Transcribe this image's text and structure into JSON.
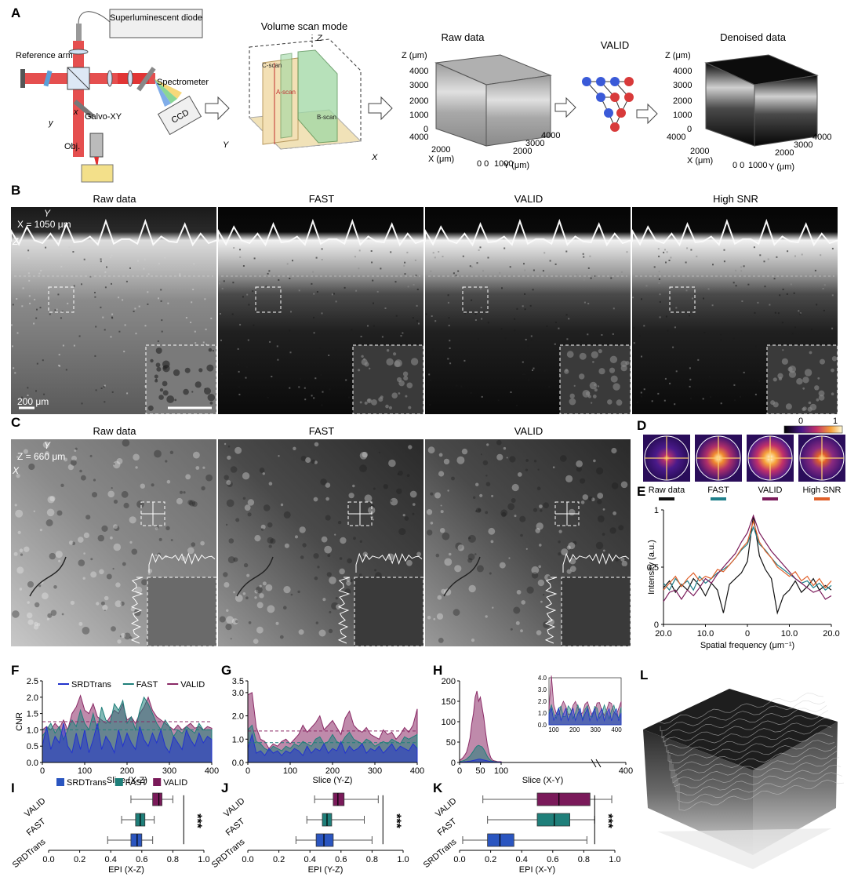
{
  "panel_letters": [
    "A",
    "B",
    "C",
    "D",
    "E",
    "F",
    "G",
    "H",
    "I",
    "J",
    "K",
    "L"
  ],
  "panel_a": {
    "device_labels": {
      "light_source": "Superluminescent diode",
      "reference_arm": "Reference arm",
      "spectrometer": "Spectrometer",
      "ccd": "CCD",
      "galvo": "Galvo-XY",
      "objective": "Obj."
    },
    "scan_title": "Volume scan mode",
    "scan_labels": {
      "a_scan": "A-scan",
      "b_scan": "B-scan",
      "c_scan": "C-scan"
    },
    "raw_title": "Raw data",
    "denoised_title": "Denoised data",
    "valid_label": "VALID",
    "cube_axes": {
      "z_label": "Z (μm)",
      "x_label": "X (μm)",
      "y_label": "Y (μm)",
      "z_ticks": [
        "4000",
        "3000",
        "2000",
        "1000",
        "0"
      ],
      "x_ticks": [
        "4000",
        "2000",
        "0"
      ],
      "y_ticks": [
        "0",
        "1000",
        "2000",
        "3000",
        "4000"
      ]
    }
  },
  "panel_b": {
    "titles": [
      "Raw data",
      "FAST",
      "VALID",
      "High SNR"
    ],
    "position_label": "X = 1050 μm",
    "scale_bar": "200 μm"
  },
  "panel_c": {
    "titles": [
      "Raw data",
      "FAST",
      "VALID"
    ],
    "position_label": "Z = 660 μm"
  },
  "panel_d": {
    "labels": [
      "Raw data",
      "FAST",
      "VALID",
      "High SNR"
    ],
    "colorbar_min": "0",
    "colorbar_max": "1",
    "legend_colors": [
      "#111111",
      "#1f7f8a",
      "#7a1a5a",
      "#e0602a"
    ]
  },
  "panel_e": {
    "ylabel": "Intensity (a.u.)",
    "xlabel": "Spatial frequency (μm⁻¹)",
    "xticks": [
      "20.0",
      "10.0",
      "0",
      "10.0",
      "20.0"
    ],
    "yticks": [
      "0",
      "0.5",
      "1"
    ]
  },
  "chart_data": [
    {
      "panel": "F",
      "type": "area",
      "xlabel": "Slice (X-Z)",
      "ylabel": "CNR",
      "xlim": [
        0,
        400
      ],
      "ylim": [
        0,
        2.5
      ],
      "xticks": [
        "0",
        "100",
        "200",
        "300",
        "400"
      ],
      "yticks": [
        "0.0",
        "0.5",
        "1.0",
        "1.5",
        "2.0",
        "2.5"
      ],
      "legend": [
        "SRDTrans",
        "FAST",
        "VALID"
      ],
      "series": [
        {
          "name": "VALID",
          "color": "#8a2a66",
          "values": [
            1.0,
            1.1,
            1.0,
            1.2,
            1.05,
            1.3,
            1.0,
            1.5,
            1.7,
            2.05,
            1.6,
            1.5,
            1.8,
            1.4,
            1.3,
            1.2,
            1.4,
            1.6,
            1.5,
            1.8,
            1.3,
            1.4,
            1.2,
            1.5,
            1.7,
            2.0,
            1.6,
            1.4,
            1.3,
            1.2,
            1.1,
            1.0,
            1.15,
            1.0,
            1.1,
            1.2,
            1.05,
            1.1,
            1.0,
            1.1,
            1.05
          ]
        },
        {
          "name": "FAST",
          "color": "#1f7f7a",
          "values": [
            0.8,
            1.0,
            1.2,
            0.9,
            1.1,
            0.7,
            1.0,
            1.3,
            1.1,
            1.6,
            1.2,
            1.0,
            1.5,
            1.0,
            1.7,
            1.3,
            1.2,
            1.8,
            1.6,
            1.9,
            1.2,
            1.4,
            1.0,
            1.6,
            2.0,
            1.8,
            1.5,
            1.2,
            1.0,
            1.3,
            1.1,
            0.8,
            1.0,
            0.9,
            1.1,
            1.0,
            0.9,
            1.2,
            1.0,
            1.0,
            1.0
          ]
        },
        {
          "name": "SRDTrans",
          "color": "#2233cc",
          "values": [
            0.5,
            1.1,
            0.4,
            0.8,
            0.6,
            1.2,
            0.5,
            0.3,
            0.9,
            0.4,
            1.0,
            0.3,
            0.7,
            1.2,
            0.4,
            0.8,
            0.6,
            0.3,
            1.0,
            0.5,
            0.9,
            0.6,
            0.4,
            1.1,
            0.7,
            0.5,
            0.9,
            0.6,
            1.0,
            0.5,
            0.3,
            0.8,
            0.6,
            0.4,
            1.0,
            0.7,
            0.5,
            0.9,
            0.6,
            0.8,
            0.7
          ]
        }
      ],
      "mean_lines": [
        {
          "series": "VALID",
          "value": 1.25
        },
        {
          "series": "FAST",
          "value": 1.0
        }
      ]
    },
    {
      "panel": "G",
      "type": "area",
      "xlabel": "Slice (Y-Z)",
      "ylabel": "",
      "xlim": [
        0,
        400
      ],
      "ylim": [
        0,
        3.5
      ],
      "xticks": [
        "0",
        "100",
        "200",
        "300",
        "400"
      ],
      "yticks": [
        "0.0",
        "1.0",
        "2.0",
        "3.0",
        "3.5"
      ],
      "series": [
        {
          "name": "VALID",
          "color": "#8a2a66",
          "values": [
            2.9,
            3.0,
            1.5,
            1.0,
            0.9,
            0.6,
            0.8,
            0.7,
            0.9,
            1.0,
            0.8,
            1.0,
            1.2,
            1.6,
            1.3,
            1.5,
            1.7,
            2.0,
            1.4,
            1.6,
            1.8,
            1.5,
            1.2,
            1.9,
            2.2,
            1.6,
            1.4,
            1.3,
            1.5,
            1.2,
            1.1,
            1.0,
            1.4,
            1.2,
            1.3,
            1.0,
            1.2,
            1.5,
            1.3,
            1.6,
            2.3
          ]
        },
        {
          "name": "FAST",
          "color": "#1f7f7a",
          "values": [
            1.4,
            1.6,
            0.9,
            0.8,
            0.6,
            0.5,
            0.7,
            0.6,
            0.5,
            0.7,
            0.6,
            0.8,
            0.7,
            0.9,
            0.8,
            0.7,
            1.0,
            1.1,
            0.8,
            0.9,
            1.2,
            0.9,
            0.8,
            1.1,
            1.3,
            1.0,
            0.9,
            0.8,
            1.0,
            0.9,
            0.7,
            0.8,
            0.9,
            0.8,
            1.0,
            0.9,
            0.8,
            1.1,
            1.0,
            1.1,
            1.2
          ]
        },
        {
          "name": "SRDTrans",
          "color": "#2233cc",
          "values": [
            0.6,
            1.2,
            0.4,
            0.5,
            0.3,
            0.6,
            0.4,
            0.5,
            0.3,
            0.5,
            0.4,
            0.6,
            0.5,
            0.3,
            0.7,
            0.4,
            0.6,
            0.5,
            0.8,
            0.4,
            0.6,
            0.5,
            0.9,
            0.4,
            0.7,
            0.5,
            0.6,
            0.8,
            0.4,
            0.6,
            0.5,
            0.7,
            0.4,
            0.6,
            0.8,
            0.5,
            0.7,
            0.6,
            0.5,
            0.8,
            0.6
          ]
        }
      ],
      "mean_lines": [
        {
          "series": "VALID",
          "value": 1.35
        },
        {
          "series": "FAST",
          "value": 0.85
        }
      ]
    },
    {
      "panel": "H",
      "type": "area",
      "xlabel": "Slice (X-Y)",
      "ylabel": "",
      "xlim": [
        0,
        400
      ],
      "ylim": [
        0,
        200
      ],
      "xticks": [
        "0",
        "50",
        "100",
        "400"
      ],
      "yticks": [
        "0",
        "50",
        "100",
        "150",
        "200"
      ],
      "series": [
        {
          "name": "VALID",
          "color": "#8a2a66",
          "values": [
            5,
            8,
            12,
            18,
            25,
            40,
            60,
            95,
            120,
            160,
            175,
            150,
            160,
            135,
            110,
            75,
            45,
            25,
            12,
            6,
            4,
            3,
            2,
            2,
            2
          ]
        },
        {
          "name": "FAST",
          "color": "#1f7f7a",
          "values": [
            2,
            3,
            4,
            6,
            8,
            12,
            16,
            22,
            28,
            35,
            40,
            42,
            40,
            38,
            32,
            24,
            15,
            9,
            5,
            3,
            2,
            2,
            1,
            1,
            1
          ]
        },
        {
          "name": "SRDTrans",
          "color": "#2233cc",
          "values": [
            1,
            1,
            1,
            2,
            2,
            3,
            3,
            4,
            5,
            6,
            7,
            8,
            8,
            7,
            6,
            5,
            4,
            3,
            2,
            2,
            1,
            1,
            1,
            1,
            1
          ]
        }
      ],
      "inset": {
        "xticks": [
          "100",
          "200",
          "300",
          "400"
        ],
        "yticks": [
          "0.0",
          "1.0",
          "2.0",
          "3.0",
          "4.0"
        ],
        "ylim": [
          0,
          4.0
        ]
      }
    },
    {
      "panel": "I",
      "type": "box",
      "xlabel": "EPI (X-Z)",
      "xlim": [
        0,
        1.0
      ],
      "xticks": [
        "0.0",
        "0.2",
        "0.4",
        "0.6",
        "0.8",
        "1.0"
      ],
      "categories": [
        "VALID",
        "FAST",
        "SRDTrans"
      ],
      "legend": [
        "SRDTrans",
        "FAST",
        "VALID"
      ],
      "boxes": [
        {
          "name": "VALID",
          "color": "#7a1a5a",
          "min": 0.53,
          "q1": 0.67,
          "median": 0.71,
          "q3": 0.73,
          "max": 0.8
        },
        {
          "name": "FAST",
          "color": "#1f7f7a",
          "min": 0.47,
          "q1": 0.56,
          "median": 0.59,
          "q3": 0.62,
          "max": 0.68
        },
        {
          "name": "SRDTrans",
          "color": "#2a55c0",
          "min": 0.38,
          "q1": 0.53,
          "median": 0.57,
          "q3": 0.6,
          "max": 0.67
        }
      ],
      "significance": "***"
    },
    {
      "panel": "J",
      "type": "box",
      "xlabel": "EPI (Y-Z)",
      "xlim": [
        0,
        1.0
      ],
      "xticks": [
        "0.0",
        "0.2",
        "0.4",
        "0.6",
        "0.8",
        "1.0"
      ],
      "categories": [
        "VALID",
        "FAST",
        "SRDTrans"
      ],
      "boxes": [
        {
          "name": "VALID",
          "color": "#7a1a5a",
          "min": 0.43,
          "q1": 0.55,
          "median": 0.58,
          "q3": 0.62,
          "max": 0.84
        },
        {
          "name": "FAST",
          "color": "#1f7f7a",
          "min": 0.38,
          "q1": 0.48,
          "median": 0.51,
          "q3": 0.54,
          "max": 0.75
        },
        {
          "name": "SRDTrans",
          "color": "#2a55c0",
          "min": 0.31,
          "q1": 0.44,
          "median": 0.49,
          "q3": 0.55,
          "max": 0.8
        }
      ],
      "significance": "***"
    },
    {
      "panel": "K",
      "type": "box",
      "xlabel": "EPI (X-Y)",
      "xlim": [
        0,
        1.0
      ],
      "xticks": [
        "0.0",
        "0.2",
        "0.4",
        "0.6",
        "0.8",
        "1.0"
      ],
      "categories": [
        "VALID",
        "FAST",
        "SRDTrans"
      ],
      "boxes": [
        {
          "name": "VALID",
          "color": "#7a1a5a",
          "min": 0.15,
          "q1": 0.5,
          "median": 0.64,
          "q3": 0.84,
          "max": 0.98
        },
        {
          "name": "FAST",
          "color": "#1f7f7a",
          "min": 0.18,
          "q1": 0.5,
          "median": 0.61,
          "q3": 0.71,
          "max": 0.87
        },
        {
          "name": "SRDTrans",
          "color": "#2a55c0",
          "min": 0.02,
          "q1": 0.18,
          "median": 0.26,
          "q3": 0.35,
          "max": 0.82
        }
      ],
      "significance": "***"
    },
    {
      "panel": "E",
      "type": "line",
      "xlim": [
        -20,
        20
      ],
      "ylim": [
        0,
        1
      ],
      "series": [
        {
          "name": "Raw data",
          "color": "#111111",
          "values": [
            0.32,
            0.38,
            0.28,
            0.35,
            0.3,
            0.4,
            0.34,
            0.25,
            0.36,
            0.3,
            0.1,
            0.35,
            0.4,
            0.45,
            0.55,
            0.95,
            0.6,
            0.48,
            0.4,
            0.1,
            0.25,
            0.3,
            0.38,
            0.28,
            0.33,
            0.4,
            0.3,
            0.34,
            0.3
          ]
        },
        {
          "name": "FAST",
          "color": "#1f7f8a",
          "values": [
            0.36,
            0.3,
            0.4,
            0.34,
            0.38,
            0.3,
            0.42,
            0.36,
            0.4,
            0.45,
            0.48,
            0.52,
            0.58,
            0.65,
            0.7,
            0.85,
            0.7,
            0.65,
            0.58,
            0.52,
            0.48,
            0.44,
            0.4,
            0.36,
            0.38,
            0.32,
            0.36,
            0.3,
            0.34
          ]
        },
        {
          "name": "VALID",
          "color": "#7a1a5a",
          "values": [
            0.2,
            0.28,
            0.3,
            0.22,
            0.3,
            0.25,
            0.32,
            0.4,
            0.36,
            0.44,
            0.5,
            0.56,
            0.62,
            0.72,
            0.8,
            0.95,
            0.8,
            0.72,
            0.64,
            0.58,
            0.52,
            0.46,
            0.4,
            0.36,
            0.32,
            0.28,
            0.3,
            0.22,
            0.25
          ]
        },
        {
          "name": "High SNR",
          "color": "#e0602a",
          "values": [
            0.3,
            0.36,
            0.42,
            0.33,
            0.4,
            0.45,
            0.38,
            0.42,
            0.4,
            0.48,
            0.46,
            0.52,
            0.58,
            0.66,
            0.72,
            0.9,
            0.72,
            0.64,
            0.58,
            0.5,
            0.46,
            0.42,
            0.46,
            0.38,
            0.42,
            0.34,
            0.4,
            0.32,
            0.38
          ]
        }
      ]
    }
  ]
}
